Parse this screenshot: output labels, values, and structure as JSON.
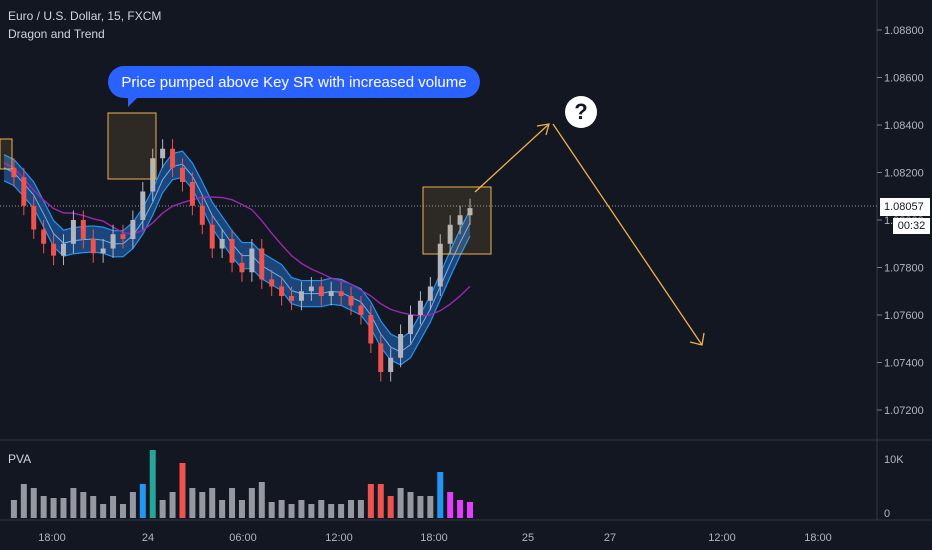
{
  "header": {
    "symbol": "Euro / U.S. Dollar, 15, FXCM",
    "indicator": "Dragon and Trend",
    "volume_label": "PVA"
  },
  "annotations": {
    "callout_text": "Price pumped above Key SR with increased volume",
    "question_mark": "?"
  },
  "badges": {
    "last_price": "1.08057",
    "countdown": "00:32"
  },
  "colors": {
    "background": "#131722",
    "band_fill": "#1e4d8c",
    "band_line": "#2196f3",
    "trend_line": "#9c27b0",
    "arrow": "#f0b24a",
    "box": "#f0b24a",
    "candle_up": "#b2b5be",
    "candle_down": "#ef5350",
    "volume_normal": "#9598a1",
    "volume_up_high": "#26a69a",
    "volume_down_high": "#ef5350",
    "volume_blue": "#2196f3"
  },
  "chart_data": {
    "type": "line",
    "ylim": [
      1.071,
      1.089
    ],
    "yticks": [
      "1.08800",
      "1.08600",
      "1.08400",
      "1.08200",
      "1.08000",
      "1.07800",
      "1.07600",
      "1.07400",
      "1.07200"
    ],
    "ytick_values": [
      1.088,
      1.086,
      1.084,
      1.082,
      1.08,
      1.078,
      1.076,
      1.074,
      1.072
    ],
    "xticks": [
      "18:00",
      "24",
      "06:00",
      "12:00",
      "18:00",
      "25",
      "27",
      "12:00",
      "18:00"
    ],
    "volume_ticks": [
      "10K",
      "0"
    ],
    "series": [
      {
        "values": [
          1.0822,
          1.0818,
          1.0806,
          1.0796,
          1.079,
          1.0785,
          1.079,
          1.08,
          1.0792,
          1.0786,
          1.0788,
          1.0794,
          1.0792,
          1.08,
          1.0812,
          1.0826,
          1.083,
          1.0822,
          1.0816,
          1.0806,
          1.0798,
          1.0788,
          1.0792,
          1.0782,
          1.0778,
          1.0788,
          1.0775,
          1.0772,
          1.0768,
          1.0766,
          1.077,
          1.0772,
          1.0768,
          1.077,
          1.0768,
          1.0764,
          1.076,
          1.0748,
          1.0736,
          1.0742,
          1.0752,
          1.076,
          1.0766,
          1.0772,
          1.079,
          1.0798,
          1.0802,
          1.0805
        ]
      }
    ],
    "volume_max": 10000
  }
}
